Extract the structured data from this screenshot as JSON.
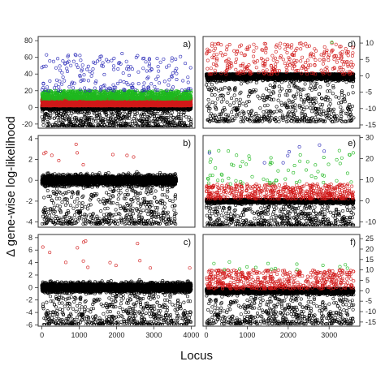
{
  "figure": {
    "ylabel": "Δ gene-wise log-likelihood",
    "xlabel": "Locus",
    "colors": {
      "black": "#000000",
      "red": "#d11a1a",
      "green": "#1fb81f",
      "blue": "#2a2ab8"
    }
  },
  "chart_data": [
    {
      "type": "scatter",
      "label": "a)",
      "xlim": [
        -100,
        4100
      ],
      "ylim": [
        -25,
        85
      ],
      "y_ticks": [
        -20,
        0,
        20,
        40,
        60,
        80
      ],
      "y_axis_side": "left",
      "x_ticks": [],
      "grid": false,
      "n_loci": 4000,
      "series": [
        {
          "color": "black",
          "value_range": [
            -25,
            5
          ],
          "points": 4000
        },
        {
          "color": "red",
          "value_range": [
            2,
            12
          ],
          "points": 4000
        },
        {
          "color": "green",
          "value_range": [
            10,
            20
          ],
          "points": 1200
        },
        {
          "color": "blue",
          "value_range": [
            20,
            65
          ],
          "points": 200
        }
      ]
    },
    {
      "type": "scatter",
      "label": "b)",
      "xlim": [
        -100,
        4100
      ],
      "ylim": [
        -4.5,
        4.3
      ],
      "y_ticks": [
        -4,
        -2,
        0,
        2,
        4
      ],
      "y_axis_side": "left",
      "x_ticks": [],
      "grid": false,
      "n_loci": 3600,
      "series": [
        {
          "color": "black",
          "value_range": [
            -4.2,
            1.5
          ],
          "points": 3600
        },
        {
          "color": "red",
          "value_range": [
            1.5,
            4.0
          ],
          "points": 10
        }
      ]
    },
    {
      "type": "scatter",
      "label": "c)",
      "xlim": [
        -100,
        4100
      ],
      "ylim": [
        -6.2,
        8.5
      ],
      "y_ticks": [
        -6,
        -4,
        -2,
        0,
        2,
        4,
        6,
        8
      ],
      "y_axis_side": "left",
      "x_ticks": [
        0,
        1000,
        2000,
        3000,
        4000
      ],
      "grid": false,
      "n_loci": 4000,
      "series": [
        {
          "color": "black",
          "value_range": [
            -6,
            2.5
          ],
          "points": 4000
        },
        {
          "color": "red",
          "value_range": [
            3,
            8
          ],
          "points": 14
        }
      ]
    },
    {
      "type": "scatter",
      "label": "d)",
      "xlim": [
        -80,
        3750
      ],
      "ylim": [
        -16,
        12
      ],
      "y_ticks": [
        -15,
        -10,
        -5,
        0,
        5,
        10
      ],
      "y_axis_side": "right",
      "x_ticks": [],
      "grid": false,
      "n_loci": 3600,
      "series": [
        {
          "color": "black",
          "value_range": [
            -14,
            0.5
          ],
          "points": 3600
        },
        {
          "color": "red",
          "value_range": [
            0.5,
            10
          ],
          "points": 300
        },
        {
          "color": "green",
          "value_range": [
            9,
            11
          ],
          "points": 1
        }
      ]
    },
    {
      "type": "scatter",
      "label": "e)",
      "xlim": [
        -80,
        3750
      ],
      "ylim": [
        -12.5,
        31
      ],
      "y_ticks": [
        -10,
        0,
        10,
        20,
        30
      ],
      "y_axis_side": "right",
      "x_ticks": [],
      "grid": false,
      "n_loci": 3600,
      "series": [
        {
          "color": "black",
          "value_range": [
            -12,
            0.5
          ],
          "points": 3600
        },
        {
          "color": "red",
          "value_range": [
            1,
            8
          ],
          "points": 500
        },
        {
          "color": "green",
          "value_range": [
            8,
            24
          ],
          "points": 70
        },
        {
          "color": "blue",
          "value_range": [
            18,
            28
          ],
          "points": 8
        }
      ]
    },
    {
      "type": "scatter",
      "label": "f)",
      "xlim": [
        -80,
        3750
      ],
      "ylim": [
        -17,
        27
      ],
      "y_ticks": [
        -15,
        -10,
        -5,
        0,
        5,
        10,
        15,
        20,
        25
      ],
      "y_axis_side": "right",
      "x_ticks": [
        0,
        1000,
        2000,
        3000
      ],
      "grid": false,
      "n_loci": 3600,
      "series": [
        {
          "color": "black",
          "value_range": [
            -16,
            1
          ],
          "points": 3600
        },
        {
          "color": "red",
          "value_range": [
            1,
            10
          ],
          "points": 500
        },
        {
          "color": "green",
          "value_range": [
            10,
            15
          ],
          "points": 15
        }
      ]
    }
  ]
}
